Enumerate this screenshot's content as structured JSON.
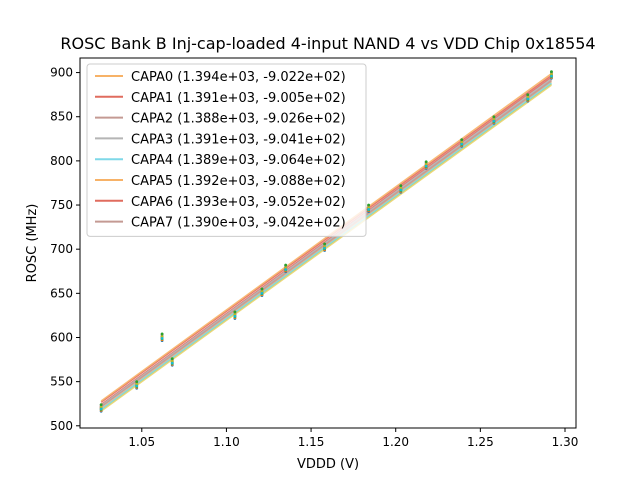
{
  "chart_data": {
    "type": "scatter",
    "title": "ROSC Bank B Inj-cap-loaded 4-input NAND 4 vs VDD Chip 0x18554",
    "xlabel": "VDDD (V)",
    "ylabel": "ROSC (MHz)",
    "xlim": [
      1.0135,
      1.3065
    ],
    "ylim": [
      497.5,
      916.5
    ],
    "x_ticks": [
      {
        "value": 1.05,
        "label": "1.05"
      },
      {
        "value": 1.1,
        "label": "1.10"
      },
      {
        "value": 1.15,
        "label": "1.15"
      },
      {
        "value": 1.2,
        "label": "1.20"
      },
      {
        "value": 1.25,
        "label": "1.25"
      },
      {
        "value": 1.3,
        "label": "1.30"
      }
    ],
    "y_ticks": [
      {
        "value": 500,
        "label": "500"
      },
      {
        "value": 550,
        "label": "550"
      },
      {
        "value": 600,
        "label": "600"
      },
      {
        "value": 650,
        "label": "650"
      },
      {
        "value": 700,
        "label": "700"
      },
      {
        "value": 750,
        "label": "750"
      },
      {
        "value": 800,
        "label": "800"
      },
      {
        "value": 850,
        "label": "850"
      },
      {
        "value": 900,
        "label": "900"
      }
    ],
    "legend_position": "top-left",
    "x": [
      1.026,
      1.047,
      1.062,
      1.068,
      1.105,
      1.121,
      1.135,
      1.158,
      1.184,
      1.203,
      1.218,
      1.239,
      1.258,
      1.278,
      1.292
    ],
    "measured": [
      520,
      546,
      600,
      572,
      625,
      651,
      678,
      702,
      746,
      768,
      795,
      820,
      846,
      871,
      897
    ],
    "series": [
      {
        "name": "CAPA0",
        "label": "CAPA0 (1.394e+03, -9.022e+02)",
        "slope": 1394,
        "intercept": -902.2,
        "color": "#f7b267"
      },
      {
        "name": "CAPA1",
        "label": "CAPA1 (1.391e+03, -9.005e+02)",
        "slope": 1391,
        "intercept": -900.5,
        "color": "#e06c5e"
      },
      {
        "name": "CAPA2",
        "label": "CAPA2 (1.388e+03, -9.026e+02)",
        "slope": 1388,
        "intercept": -902.6,
        "color": "#c49a93"
      },
      {
        "name": "CAPA3",
        "label": "CAPA3 (1.391e+03, -9.041e+02)",
        "slope": 1391,
        "intercept": -904.1,
        "color": "#b5b5b5"
      },
      {
        "name": "CAPA4",
        "label": "CAPA4 (1.389e+03, -9.064e+02)",
        "slope": 1389,
        "intercept": -906.4,
        "color": "#7fd8e8"
      },
      {
        "name": "CAPA5",
        "label": "CAPA5 (1.392e+03, -9.088e+02)",
        "slope": 1392,
        "intercept": -908.8,
        "color": "#f7b267"
      },
      {
        "name": "CAPA6",
        "label": "CAPA6 (1.393e+03, -9.052e+02)",
        "slope": 1393,
        "intercept": -905.2,
        "color": "#e06c5e"
      },
      {
        "name": "CAPA7",
        "label": "CAPA7 (1.390e+03, -9.042e+02)",
        "slope": 1390,
        "intercept": -904.2,
        "color": "#c49a93"
      }
    ],
    "extra_fit_colors": [
      "#9acd60",
      "#e9d36b"
    ],
    "marker_colors": [
      "#1f77b4",
      "#ff7f0e",
      "#2ca02c",
      "#d62728",
      "#9467bd",
      "#8c564b",
      "#e377c2",
      "#7f7f7f",
      "#bcbd22",
      "#17becf",
      "#2ca02c"
    ]
  }
}
